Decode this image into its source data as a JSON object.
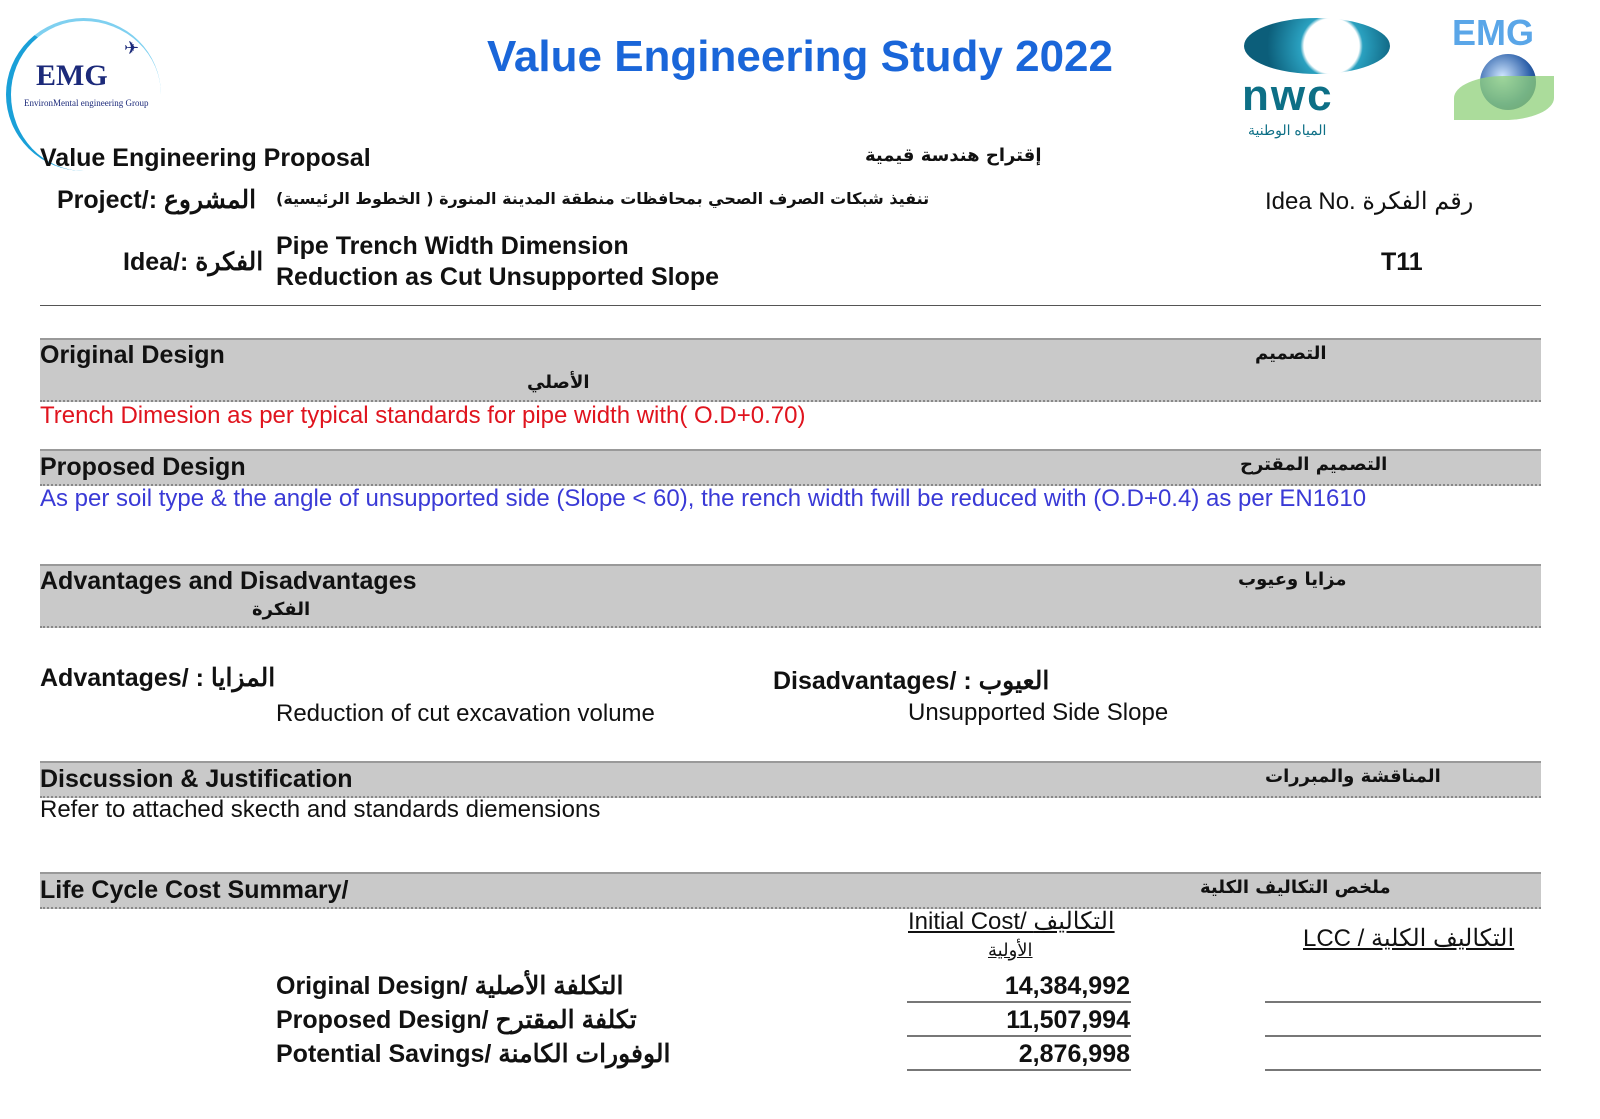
{
  "header": {
    "title": "Value Engineering Study 2022",
    "logo_left": "EMG",
    "logo_left_sub": "EnvironMental engineering Group",
    "logo_mid": "nwc",
    "logo_mid_ar": "المياه الوطنية",
    "logo_right": "EMG"
  },
  "proposal": {
    "label_en": "Value Engineering Proposal",
    "label_ar": "إقتراح هندسة قيمية",
    "project_label": "Project/: المشروع",
    "project_value": "تنفيذ شبكات الصرف الصحي بمحافظات منطقة المدينة المنورة ( الخطوط الرئيسية)",
    "idea_no_label": "Idea No. رقم الفكرة",
    "idea_label": "Idea/: الفكرة",
    "idea_line1": "Pipe Trench Width Dimension",
    "idea_line2": "Reduction as Cut Unsupported  Slope",
    "idea_no": "T11"
  },
  "original": {
    "title": "Original Design",
    "title_ar": "التصميم",
    "title_ar2": "الأصلي",
    "text": "Trench Dimesion as per typical standards for pipe width with( O.D+0.70)"
  },
  "proposed": {
    "title": "Proposed Design",
    "title_ar": "التصميم المقترح",
    "text": "As per soil type & the angle of unsupported side (Slope < 60), the rench width fwill be reduced with (O.D+0.4) as per EN1610"
  },
  "advdis": {
    "title": "Advantages and Disadvantages",
    "title_ar": "مزايا وعيوب",
    "title_ar2": "الفكرة",
    "adv_label": "Advantages/ : المزايا",
    "adv_text": "Reduction of cut excavation volume",
    "dis_label": "Disadvantages/ : العيوب",
    "dis_text": "Unsupported Side Slope"
  },
  "discussion": {
    "title": "Discussion & Justification",
    "title_ar": "المناقشة والمبررات",
    "text": "Refer to attached skecth and standards diemensions"
  },
  "lcc": {
    "title": "Life Cycle Cost Summary/",
    "title_ar": "ملخص التكاليف الكلية",
    "col_initial": "Initial Cost/  التكاليف",
    "col_initial2": "الأولية",
    "col_lcc": "LCC / التكاليف الكلية",
    "rows": [
      {
        "label": "Original Design/ التكلفة الأصلية",
        "initial": "14,384,992"
      },
      {
        "label": "Proposed Design/ تكلفة المقترح",
        "initial": "11,507,994"
      },
      {
        "label": "Potential Savings/ الوفورات الكامنة",
        "initial": "2,876,998"
      }
    ]
  },
  "colors": {
    "title": "#1a66d9",
    "original_text": "#e0141e",
    "proposed_text": "#3a3ad6",
    "bar": "#c9c9c9"
  }
}
